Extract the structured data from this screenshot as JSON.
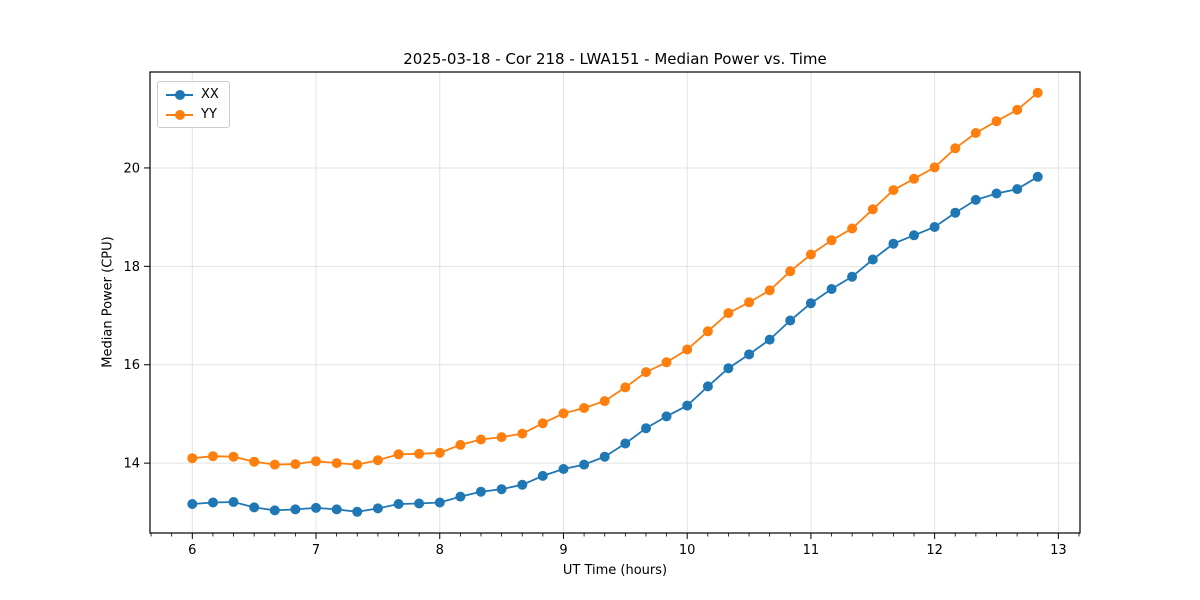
{
  "colors": {
    "series_xx": "#1f77b4",
    "series_yy": "#ff7f0e",
    "grid": "#e2e2e2",
    "axis": "#000000",
    "background": "#ffffff",
    "legend_border": "#cccccc"
  },
  "chart_data": {
    "type": "line",
    "title": "2025-03-18 - Cor 218 - LWA151 - Median Power vs. Time",
    "xlabel": "UT Time (hours)",
    "ylabel": "Median Power (CPU)",
    "xlim": [
      5.658,
      13.175
    ],
    "ylim": [
      12.58,
      21.95
    ],
    "xticks": [
      6,
      7,
      8,
      9,
      10,
      11,
      12,
      13
    ],
    "yticks": [
      14,
      16,
      18,
      20
    ],
    "x_minor_interval": 0.166667,
    "grid": true,
    "legend_position": "upper-left",
    "marker": "circle",
    "x": [
      6.0,
      6.167,
      6.333,
      6.5,
      6.667,
      6.833,
      7.0,
      7.167,
      7.333,
      7.5,
      7.667,
      7.833,
      8.0,
      8.167,
      8.333,
      8.5,
      8.667,
      8.833,
      9.0,
      9.167,
      9.333,
      9.5,
      9.667,
      9.833,
      10.0,
      10.167,
      10.333,
      10.5,
      10.667,
      10.833,
      11.0,
      11.167,
      11.333,
      11.5,
      11.667,
      11.833,
      12.0,
      12.167,
      12.333,
      12.5,
      12.667,
      12.833
    ],
    "series": [
      {
        "name": "XX",
        "color": "#1f77b4",
        "values": [
          13.17,
          13.2,
          13.21,
          13.1,
          13.04,
          13.06,
          13.09,
          13.06,
          13.01,
          13.08,
          13.17,
          13.18,
          13.2,
          13.32,
          13.42,
          13.47,
          13.56,
          13.74,
          13.88,
          13.97,
          14.13,
          14.4,
          14.71,
          14.95,
          15.17,
          15.56,
          15.93,
          16.21,
          16.51,
          16.9,
          17.25,
          17.54,
          17.79,
          18.14,
          18.46,
          18.63,
          18.8,
          19.09,
          19.35,
          19.48,
          19.57,
          19.82
        ]
      },
      {
        "name": "YY",
        "color": "#ff7f0e",
        "values": [
          14.1,
          14.14,
          14.13,
          14.03,
          13.97,
          13.98,
          14.04,
          14.0,
          13.97,
          14.06,
          14.18,
          14.19,
          14.21,
          14.37,
          14.48,
          14.53,
          14.6,
          14.81,
          15.01,
          15.12,
          15.26,
          15.54,
          15.85,
          16.05,
          16.31,
          16.68,
          17.05,
          17.27,
          17.51,
          17.9,
          18.24,
          18.53,
          18.77,
          19.16,
          19.55,
          19.78,
          20.01,
          20.4,
          20.71,
          20.95,
          21.18,
          21.53
        ]
      }
    ]
  }
}
